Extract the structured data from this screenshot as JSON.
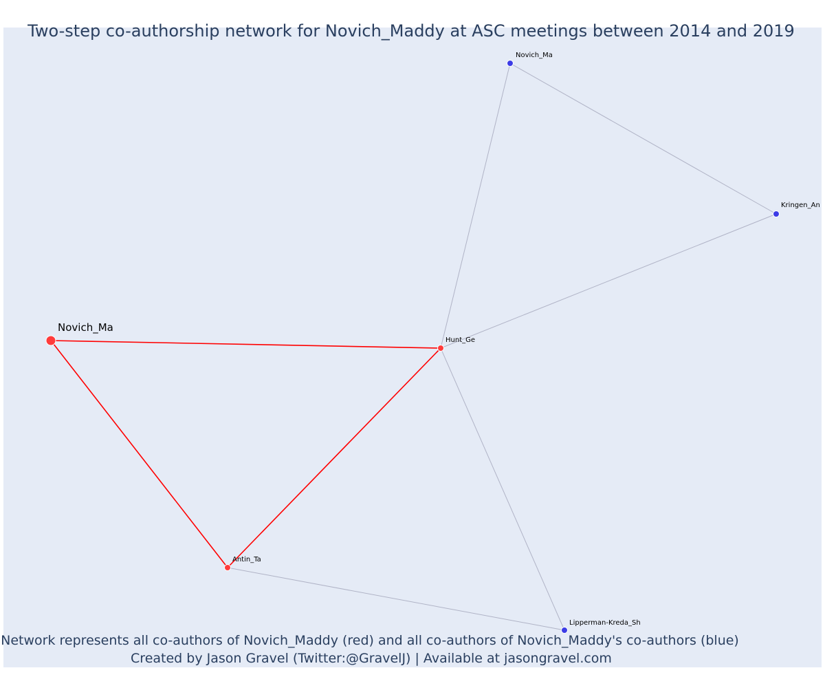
{
  "title": "Two-step co-authorship network for Novich_Maddy at ASC meetings between 2014 and 2019",
  "caption": {
    "line1": "Network represents all co-authors of Novich_Maddy (red) and all co-authors of Novich_Maddy's co-authors (blue)",
    "line2": "Created by Jason Gravel (Twitter:@GravelJ) | Available at jasongravel.com"
  },
  "colors": {
    "background": "#e5ebf6",
    "first_degree": "#ff3b3b",
    "second_degree": "#3c3ce6",
    "first_degree_edge": "#ff0000",
    "second_degree_edge": "#b0b3c6",
    "text": "#2a3f5f"
  },
  "nodes": [
    {
      "id": "focal",
      "label": "Novich_Ma",
      "group": "focal"
    },
    {
      "id": "hunt",
      "label": "Hunt_Ge",
      "group": "first"
    },
    {
      "id": "antin",
      "label": "Antin_Ta",
      "group": "first"
    },
    {
      "id": "novich2",
      "label": "Novich_Ma",
      "group": "second"
    },
    {
      "id": "kringen",
      "label": "Kringen_An",
      "group": "second"
    },
    {
      "id": "lipperman",
      "label": "Lipperman-Kreda_Sh",
      "group": "second"
    }
  ],
  "edges": [
    {
      "source": "focal",
      "target": "hunt",
      "type": "first"
    },
    {
      "source": "focal",
      "target": "antin",
      "type": "first"
    },
    {
      "source": "antin",
      "target": "hunt",
      "type": "first"
    },
    {
      "source": "hunt",
      "target": "novich2",
      "type": "second"
    },
    {
      "source": "hunt",
      "target": "kringen",
      "type": "second"
    },
    {
      "source": "hunt",
      "target": "lipperman",
      "type": "second"
    },
    {
      "source": "novich2",
      "target": "kringen",
      "type": "second"
    },
    {
      "source": "antin",
      "target": "lipperman",
      "type": "second"
    }
  ]
}
